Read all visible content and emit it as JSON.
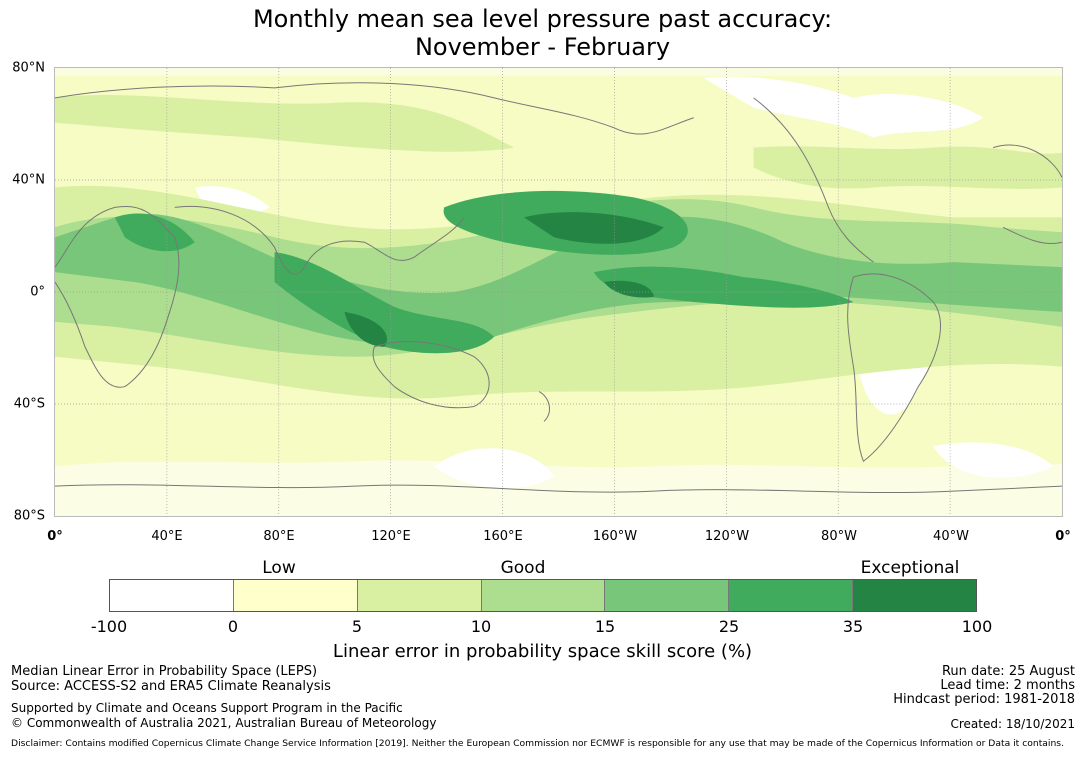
{
  "title_line1": "Monthly mean sea level pressure past accuracy:",
  "title_line2": "November - February",
  "map": {
    "lat_labels": [
      "80°N",
      "40°N",
      "0°",
      "40°S",
      "80°S"
    ],
    "lon_labels": [
      "0°",
      "40°E",
      "80°E",
      "120°E",
      "160°E",
      "160°W",
      "120°W",
      "80°W",
      "40°W",
      "0°"
    ],
    "grid_color": "#9a9a9a",
    "coast_color": "#777777"
  },
  "legend": {
    "categories": [
      "Low",
      "Good",
      "Exceptional"
    ],
    "ticks": [
      "-100",
      "0",
      "5",
      "10",
      "15",
      "25",
      "35",
      "100"
    ],
    "colors": [
      "#ffffff",
      "#ffffcc",
      "#d9f0a3",
      "#addd8e",
      "#78c679",
      "#41ab5d",
      "#238443"
    ],
    "title": "Linear error in probability space skill score (%)"
  },
  "footer": {
    "left_line1": "Median Linear Error in Probability Space (LEPS)",
    "left_line2": "Source: ACCESS-S2 and ERA5 Climate Reanalysis",
    "left_line3": "Supported by Climate and Oceans Support Program in the Pacific",
    "left_line4": "© Commonwealth of Australia 2021, Australian Bureau of Meteorology",
    "run_date": "Run date: 25 August",
    "lead_time": "Lead time: 2 months",
    "hindcast": "Hindcast period: 1981-2018",
    "created": "Created: 18/10/2021",
    "disclaimer": "Disclaimer: Contains modified Copernicus Climate Change Service Information [2019]. Neither the European Commission nor ECMWF is responsible for any use that may be made of the Copernicus Information or Data it contains."
  }
}
